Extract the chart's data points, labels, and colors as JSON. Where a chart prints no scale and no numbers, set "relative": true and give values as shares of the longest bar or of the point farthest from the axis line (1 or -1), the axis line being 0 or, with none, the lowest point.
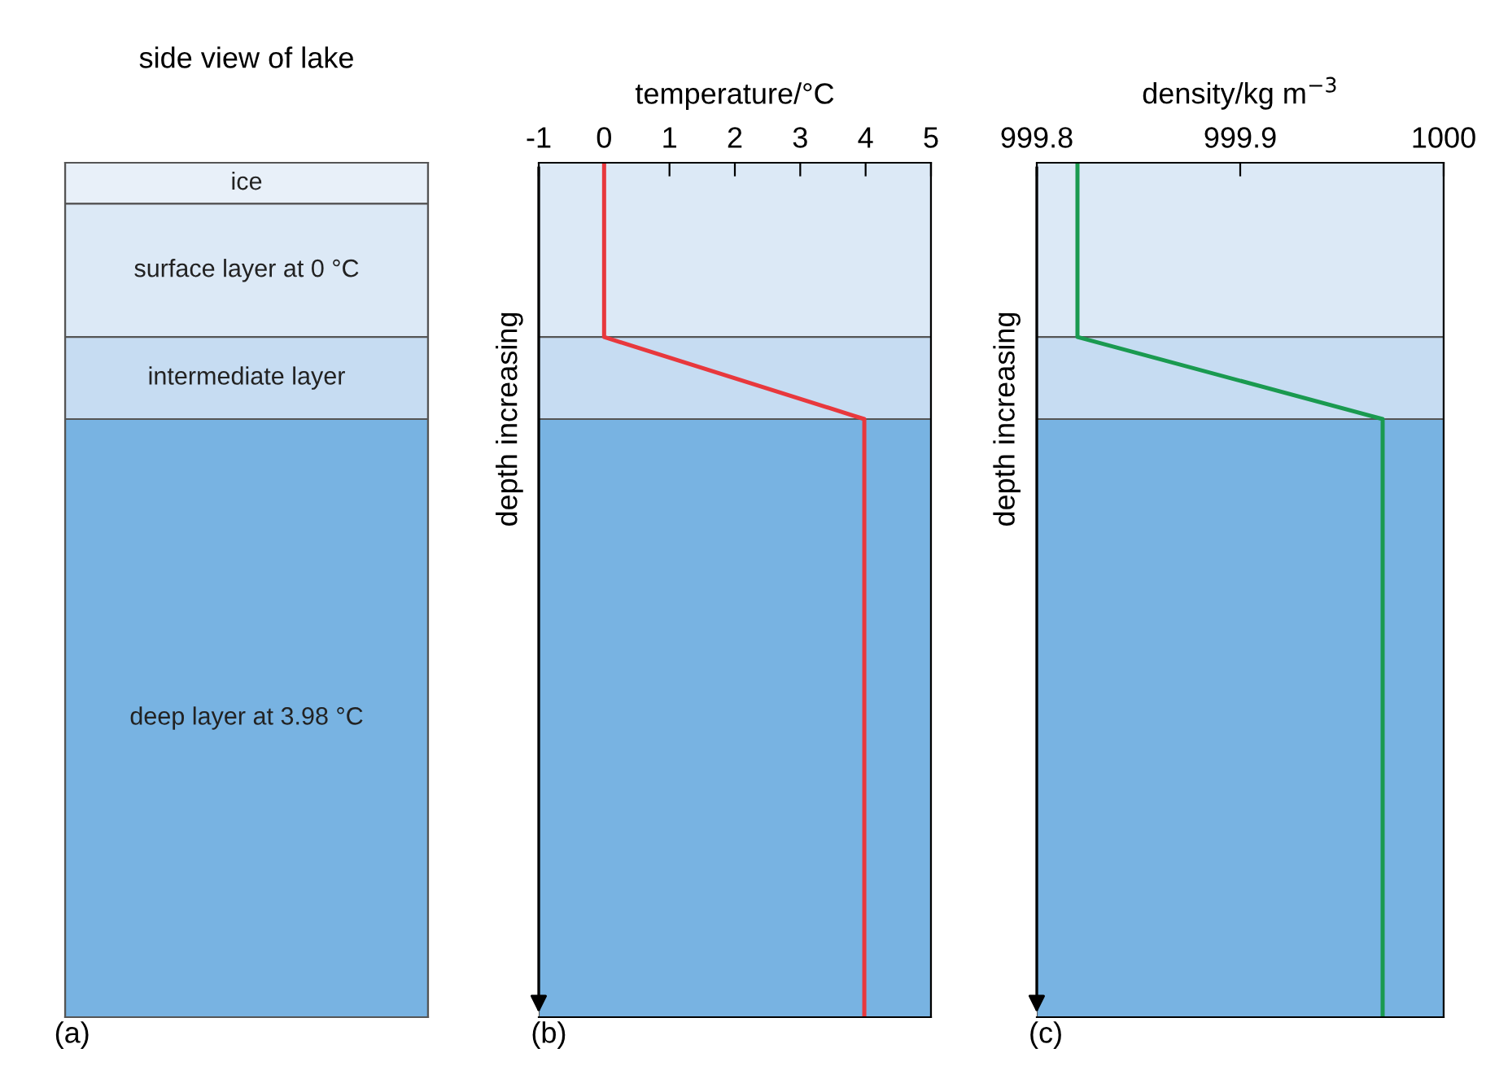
{
  "chart_data": [
    {
      "type": "other",
      "title": "side view of lake",
      "annotations": [
        "ice",
        "surface layer at 0 °C",
        "intermediate layer",
        "deep layer at 3.98 °C",
        "(a)"
      ]
    },
    {
      "type": "line",
      "xlabel": "temperature/°C",
      "ylabel": "depth increasing",
      "relative": true,
      "annotations": [
        "(b)"
      ],
      "xlim": [
        -1,
        5
      ],
      "xticks": [
        -1,
        0,
        1,
        2,
        3,
        4,
        5
      ],
      "tick_labels": "x",
      "bands": [
        {
          "axis": "y",
          "from": 0,
          "to": -0.204,
          "color": "#dce9f6"
        },
        {
          "axis": "y",
          "from": -0.204,
          "to": -0.3,
          "color": "#c6dcf2"
        },
        {
          "axis": "y",
          "from": -0.3,
          "to": -1,
          "color": "#78b3e2"
        }
      ],
      "series": [
        {
          "color": "#e8383d",
          "x": [
            0,
            0,
            3.98,
            3.98
          ],
          "values": [
            0,
            -0.204,
            -0.3,
            -1
          ]
        }
      ]
    },
    {
      "type": "line",
      "xlabel": "density/kg m$^{−3}$",
      "ylabel": "depth increasing",
      "relative": true,
      "annotations": [
        "(c)"
      ],
      "xlim": [
        999.8,
        1000
      ],
      "xticks": [
        999.8,
        999.9,
        1000
      ],
      "tick_labels": "x",
      "bands": [
        {
          "axis": "y",
          "from": 0,
          "to": -0.204,
          "color": "#dce9f6"
        },
        {
          "axis": "y",
          "from": -0.204,
          "to": -0.3,
          "color": "#c6dcf2"
        },
        {
          "axis": "y",
          "from": -0.3,
          "to": -1,
          "color": "#78b3e2"
        }
      ],
      "series": [
        {
          "color": "#1a9a50",
          "x": [
            999.82,
            999.82,
            999.97,
            999.97
          ],
          "values": [
            0,
            -0.204,
            -0.3,
            -1
          ]
        }
      ]
    }
  ]
}
